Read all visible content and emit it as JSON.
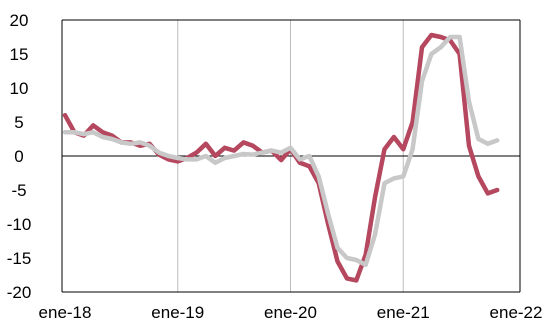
{
  "chart_data": {
    "type": "line",
    "title": "",
    "xlabel": "",
    "ylabel": "",
    "ylim": [
      -20,
      20
    ],
    "yticks": [
      20,
      15,
      10,
      5,
      0,
      -5,
      -10,
      -15,
      -20
    ],
    "xtick_labels": [
      "ene-18",
      "ene-19",
      "ene-20",
      "ene-21",
      "ene-22"
    ],
    "x_months_range": [
      "2018-01",
      "2022-01"
    ],
    "grid": "vertical",
    "legend": "none",
    "series": [
      {
        "color": "#b5475f",
        "points": [
          [
            "2018-01",
            6.0
          ],
          [
            "2018-02",
            3.5
          ],
          [
            "2018-03",
            3.0
          ],
          [
            "2018-04",
            4.5
          ],
          [
            "2018-05",
            3.5
          ],
          [
            "2018-06",
            3.0
          ],
          [
            "2018-07",
            2.0
          ],
          [
            "2018-08",
            2.0
          ],
          [
            "2018-09",
            1.5
          ],
          [
            "2018-10",
            1.8
          ],
          [
            "2018-11",
            0.2
          ],
          [
            "2018-12",
            -0.5
          ],
          [
            "2019-01",
            -0.8
          ],
          [
            "2019-02",
            -0.3
          ],
          [
            "2019-03",
            0.5
          ],
          [
            "2019-04",
            1.8
          ],
          [
            "2019-05",
            0.0
          ],
          [
            "2019-06",
            1.2
          ],
          [
            "2019-07",
            0.8
          ],
          [
            "2019-08",
            2.0
          ],
          [
            "2019-09",
            1.5
          ],
          [
            "2019-10",
            0.5
          ],
          [
            "2019-11",
            0.8
          ],
          [
            "2019-12",
            -0.6
          ],
          [
            "2020-01",
            1.0
          ],
          [
            "2020-02",
            -1.0
          ],
          [
            "2020-03",
            -1.5
          ],
          [
            "2020-04",
            -4.0
          ],
          [
            "2020-05",
            -10.0
          ],
          [
            "2020-06",
            -15.5
          ],
          [
            "2020-07",
            -18.0
          ],
          [
            "2020-08",
            -18.3
          ],
          [
            "2020-09",
            -14.5
          ],
          [
            "2020-10",
            -6.0
          ],
          [
            "2020-11",
            1.0
          ],
          [
            "2020-12",
            2.8
          ],
          [
            "2021-01",
            1.0
          ],
          [
            "2021-02",
            5.0
          ],
          [
            "2021-03",
            16.0
          ],
          [
            "2021-04",
            17.8
          ],
          [
            "2021-05",
            17.5
          ],
          [
            "2021-06",
            17.0
          ],
          [
            "2021-07",
            15.0
          ],
          [
            "2021-08",
            1.5
          ],
          [
            "2021-09",
            -3.0
          ],
          [
            "2021-10",
            -5.5
          ],
          [
            "2021-11",
            -5.0
          ]
        ]
      },
      {
        "color": "#c8c8c8",
        "points": [
          [
            "2018-01",
            3.5
          ],
          [
            "2018-02",
            3.5
          ],
          [
            "2018-03",
            3.2
          ],
          [
            "2018-04",
            3.5
          ],
          [
            "2018-05",
            2.8
          ],
          [
            "2018-06",
            2.5
          ],
          [
            "2018-07",
            2.0
          ],
          [
            "2018-08",
            1.8
          ],
          [
            "2018-09",
            2.0
          ],
          [
            "2018-10",
            1.5
          ],
          [
            "2018-11",
            0.5
          ],
          [
            "2018-12",
            0.0
          ],
          [
            "2019-01",
            -0.3
          ],
          [
            "2019-02",
            -0.5
          ],
          [
            "2019-03",
            -0.5
          ],
          [
            "2019-04",
            0.0
          ],
          [
            "2019-05",
            -1.0
          ],
          [
            "2019-06",
            -0.3
          ],
          [
            "2019-07",
            0.0
          ],
          [
            "2019-08",
            0.3
          ],
          [
            "2019-09",
            0.2
          ],
          [
            "2019-10",
            0.5
          ],
          [
            "2019-11",
            0.8
          ],
          [
            "2019-12",
            0.5
          ],
          [
            "2020-01",
            1.2
          ],
          [
            "2020-02",
            -0.5
          ],
          [
            "2020-03",
            0.0
          ],
          [
            "2020-04",
            -3.0
          ],
          [
            "2020-05",
            -8.5
          ],
          [
            "2020-06",
            -13.5
          ],
          [
            "2020-07",
            -15.0
          ],
          [
            "2020-08",
            -15.3
          ],
          [
            "2020-09",
            -16.0
          ],
          [
            "2020-10",
            -11.5
          ],
          [
            "2020-11",
            -4.0
          ],
          [
            "2020-12",
            -3.3
          ],
          [
            "2021-01",
            -3.0
          ],
          [
            "2021-02",
            1.0
          ],
          [
            "2021-03",
            11.0
          ],
          [
            "2021-04",
            15.0
          ],
          [
            "2021-05",
            16.0
          ],
          [
            "2021-06",
            17.5
          ],
          [
            "2021-07",
            17.5
          ],
          [
            "2021-08",
            8.0
          ],
          [
            "2021-09",
            2.5
          ],
          [
            "2021-10",
            1.8
          ],
          [
            "2021-11",
            2.3
          ]
        ]
      }
    ]
  }
}
